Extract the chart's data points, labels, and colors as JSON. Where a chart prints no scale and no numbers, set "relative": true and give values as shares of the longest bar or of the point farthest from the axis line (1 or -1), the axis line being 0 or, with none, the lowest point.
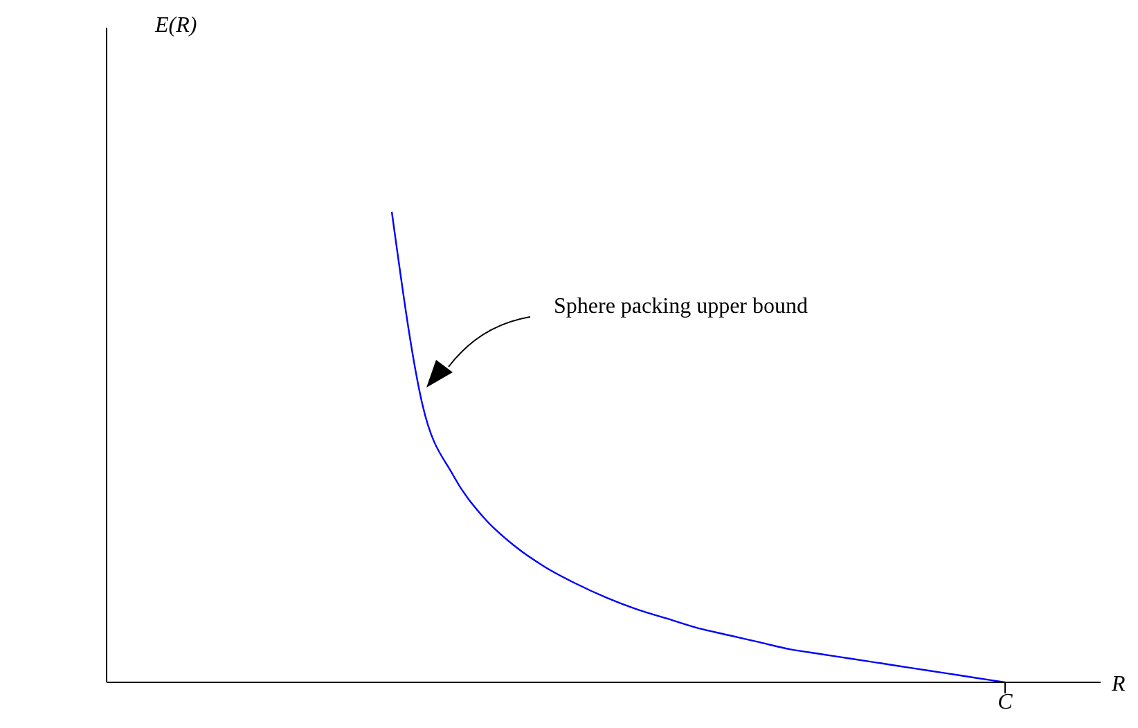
{
  "chart_data": {
    "type": "line",
    "relative": true,
    "xlabel": "R",
    "categories": [
      null,
      null,
      null,
      null,
      null,
      null,
      null,
      null,
      null,
      null,
      null,
      null,
      null,
      null,
      null,
      null,
      null,
      null,
      null,
      null,
      null
    ],
    "series": [
      {
        "color": "#0000ff",
        "values": [
          1.0,
          0.59,
          0.44,
          0.35,
          0.29,
          0.245,
          0.21,
          0.18,
          0.155,
          0.135,
          0.115,
          0.1,
          0.085,
          0.07,
          0.06,
          0.05,
          0.04,
          0.03,
          0.02,
          0.01,
          0.0
        ]
      }
    ],
    "annotations": [
      "Sphere packing upper bound",
      "E(R)",
      "C"
    ],
    "grid": false,
    "legend": false,
    "marker": "none"
  }
}
